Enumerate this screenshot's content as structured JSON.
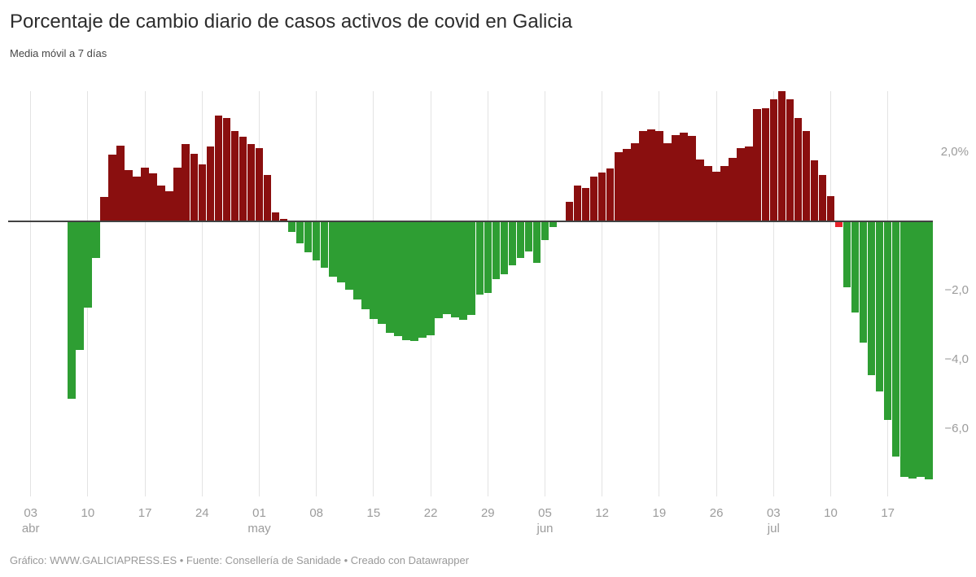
{
  "header": {
    "title": "Porcentaje de cambio diario de casos activos de covid en Galicia",
    "subtitle": "Media móvil a 7 días"
  },
  "footer": {
    "credit": "Gráfico: WWW.GALICIAPRESS.ES • Fuente: Consellería de Sanidade • Creado con Datawrapper"
  },
  "colors": {
    "positive": "#8a0f0f",
    "negative": "#2e9e33",
    "special": "#e8232b",
    "baseline": "#424242",
    "gridline": "#e3e3e3",
    "axis_text": "#9c9c9c"
  },
  "chart_data": {
    "type": "bar",
    "title": "Porcentaje de cambio diario de casos activos de covid en Galicia",
    "subtitle": "Media móvil a 7 días",
    "unit": "%",
    "ylim": [
      -7.6,
      4.0
    ],
    "grid": "vertical-weekly-only",
    "legend": "none",
    "y_axis_labels": [
      {
        "text": "2,0%",
        "value": 2.0
      },
      {
        "text": "−2,0",
        "value": -2.0
      },
      {
        "text": "−4,0",
        "value": -4.0
      },
      {
        "text": "−6,0",
        "value": -6.0
      }
    ],
    "x_ticks": [
      {
        "day": "03",
        "month": "abr",
        "day_index": 0
      },
      {
        "day": "10",
        "month": "",
        "day_index": 7
      },
      {
        "day": "17",
        "month": "",
        "day_index": 14
      },
      {
        "day": "24",
        "month": "",
        "day_index": 21
      },
      {
        "day": "01",
        "month": "may",
        "day_index": 28
      },
      {
        "day": "08",
        "month": "",
        "day_index": 35
      },
      {
        "day": "15",
        "month": "",
        "day_index": 42
      },
      {
        "day": "22",
        "month": "",
        "day_index": 49
      },
      {
        "day": "29",
        "month": "",
        "day_index": 56
      },
      {
        "day": "05",
        "month": "jun",
        "day_index": 63
      },
      {
        "day": "12",
        "month": "",
        "day_index": 70
      },
      {
        "day": "19",
        "month": "",
        "day_index": 77
      },
      {
        "day": "26",
        "month": "",
        "day_index": 84
      },
      {
        "day": "03",
        "month": "jul",
        "day_index": 91
      },
      {
        "day": "10",
        "month": "",
        "day_index": 98
      },
      {
        "day": "17",
        "month": "",
        "day_index": 105
      }
    ],
    "special_dates": [
      "11 jul"
    ],
    "first_bar_day_index": 5,
    "series": [
      {
        "name": "Cambio diario de casos activos (%)",
        "points": [
          {
            "d": "08 abr",
            "v": -5.11
          },
          {
            "d": "09 abr",
            "v": -3.71
          },
          {
            "d": "10 abr",
            "v": -2.48
          },
          {
            "d": "11 abr",
            "v": -1.04
          },
          {
            "d": "12 abr",
            "v": 0.69
          },
          {
            "d": "13 abr",
            "v": 1.91
          },
          {
            "d": "14 abr",
            "v": 2.18
          },
          {
            "d": "15 abr",
            "v": 1.48
          },
          {
            "d": "16 abr",
            "v": 1.28
          },
          {
            "d": "17 abr",
            "v": 1.54
          },
          {
            "d": "18 abr",
            "v": 1.37
          },
          {
            "d": "19 abr",
            "v": 1.03
          },
          {
            "d": "20 abr",
            "v": 0.86
          },
          {
            "d": "21 abr",
            "v": 1.54
          },
          {
            "d": "22 abr",
            "v": 2.22
          },
          {
            "d": "23 abr",
            "v": 1.95
          },
          {
            "d": "24 abr",
            "v": 1.63
          },
          {
            "d": "25 abr",
            "v": 2.16
          },
          {
            "d": "26 abr",
            "v": 3.04
          },
          {
            "d": "27 abr",
            "v": 2.98
          },
          {
            "d": "28 abr",
            "v": 2.6
          },
          {
            "d": "29 abr",
            "v": 2.43
          },
          {
            "d": "30 abr",
            "v": 2.23
          },
          {
            "d": "01 may",
            "v": 2.1
          },
          {
            "d": "02 may",
            "v": 1.33
          },
          {
            "d": "03 may",
            "v": 0.25
          },
          {
            "d": "04 may",
            "v": 0.06
          },
          {
            "d": "05 may",
            "v": -0.28
          },
          {
            "d": "06 may",
            "v": -0.62
          },
          {
            "d": "07 may",
            "v": -0.88
          },
          {
            "d": "08 may",
            "v": -1.12
          },
          {
            "d": "09 may",
            "v": -1.33
          },
          {
            "d": "10 may",
            "v": -1.58
          },
          {
            "d": "11 may",
            "v": -1.74
          },
          {
            "d": "12 may",
            "v": -1.95
          },
          {
            "d": "13 may",
            "v": -2.25
          },
          {
            "d": "14 may",
            "v": -2.53
          },
          {
            "d": "15 may",
            "v": -2.8
          },
          {
            "d": "16 may",
            "v": -2.95
          },
          {
            "d": "17 may",
            "v": -3.2
          },
          {
            "d": "18 may",
            "v": -3.31
          },
          {
            "d": "19 may",
            "v": -3.42
          },
          {
            "d": "20 may",
            "v": -3.45
          },
          {
            "d": "21 may",
            "v": -3.34
          },
          {
            "d": "22 may",
            "v": -3.28
          },
          {
            "d": "23 may",
            "v": -2.79
          },
          {
            "d": "24 may",
            "v": -2.67
          },
          {
            "d": "25 may",
            "v": -2.76
          },
          {
            "d": "26 may",
            "v": -2.83
          },
          {
            "d": "27 may",
            "v": -2.69
          },
          {
            "d": "28 may",
            "v": -2.1
          },
          {
            "d": "29 may",
            "v": -2.06
          },
          {
            "d": "30 may",
            "v": -1.65
          },
          {
            "d": "31 may",
            "v": -1.51
          },
          {
            "d": "01 jun",
            "v": -1.25
          },
          {
            "d": "02 jun",
            "v": -1.05
          },
          {
            "d": "03 jun",
            "v": -0.86
          },
          {
            "d": "04 jun",
            "v": -1.19
          },
          {
            "d": "05 jun",
            "v": -0.53
          },
          {
            "d": "06 jun",
            "v": -0.15
          },
          {
            "d": "07 jun",
            "v": 0.0
          },
          {
            "d": "08 jun",
            "v": 0.56
          },
          {
            "d": "09 jun",
            "v": 1.03
          },
          {
            "d": "10 jun",
            "v": 0.96
          },
          {
            "d": "11 jun",
            "v": 1.29
          },
          {
            "d": "12 jun",
            "v": 1.41
          },
          {
            "d": "13 jun",
            "v": 1.52
          },
          {
            "d": "14 jun",
            "v": 1.98
          },
          {
            "d": "15 jun",
            "v": 2.08
          },
          {
            "d": "16 jun",
            "v": 2.24
          },
          {
            "d": "17 jun",
            "v": 2.59
          },
          {
            "d": "18 jun",
            "v": 2.65
          },
          {
            "d": "19 jun",
            "v": 2.61
          },
          {
            "d": "20 jun",
            "v": 2.25
          },
          {
            "d": "21 jun",
            "v": 2.49
          },
          {
            "d": "22 jun",
            "v": 2.55
          },
          {
            "d": "23 jun",
            "v": 2.47
          },
          {
            "d": "24 jun",
            "v": 1.78
          },
          {
            "d": "25 jun",
            "v": 1.59
          },
          {
            "d": "26 jun",
            "v": 1.42
          },
          {
            "d": "27 jun",
            "v": 1.6
          },
          {
            "d": "28 jun",
            "v": 1.82
          },
          {
            "d": "29 jun",
            "v": 2.1
          },
          {
            "d": "30 jun",
            "v": 2.16
          },
          {
            "d": "01 jul",
            "v": 3.24
          },
          {
            "d": "02 jul",
            "v": 3.26
          },
          {
            "d": "03 jul",
            "v": 3.52
          },
          {
            "d": "04 jul",
            "v": 3.76
          },
          {
            "d": "05 jul",
            "v": 3.52
          },
          {
            "d": "06 jul",
            "v": 2.98
          },
          {
            "d": "07 jul",
            "v": 2.6
          },
          {
            "d": "08 jul",
            "v": 1.75
          },
          {
            "d": "09 jul",
            "v": 1.32
          },
          {
            "d": "10 jul",
            "v": 0.72
          },
          {
            "d": "11 jul",
            "v": -0.14
          },
          {
            "d": "12 jul",
            "v": -1.88
          },
          {
            "d": "13 jul",
            "v": -2.63
          },
          {
            "d": "14 jul",
            "v": -3.48
          },
          {
            "d": "15 jul",
            "v": -4.43
          },
          {
            "d": "16 jul",
            "v": -4.91
          },
          {
            "d": "17 jul",
            "v": -5.73
          },
          {
            "d": "18 jul",
            "v": -6.79
          },
          {
            "d": "19 jul",
            "v": -7.37
          },
          {
            "d": "20 jul",
            "v": -7.43
          },
          {
            "d": "21 jul",
            "v": -7.37
          },
          {
            "d": "22 jul",
            "v": -7.45
          }
        ]
      }
    ]
  }
}
